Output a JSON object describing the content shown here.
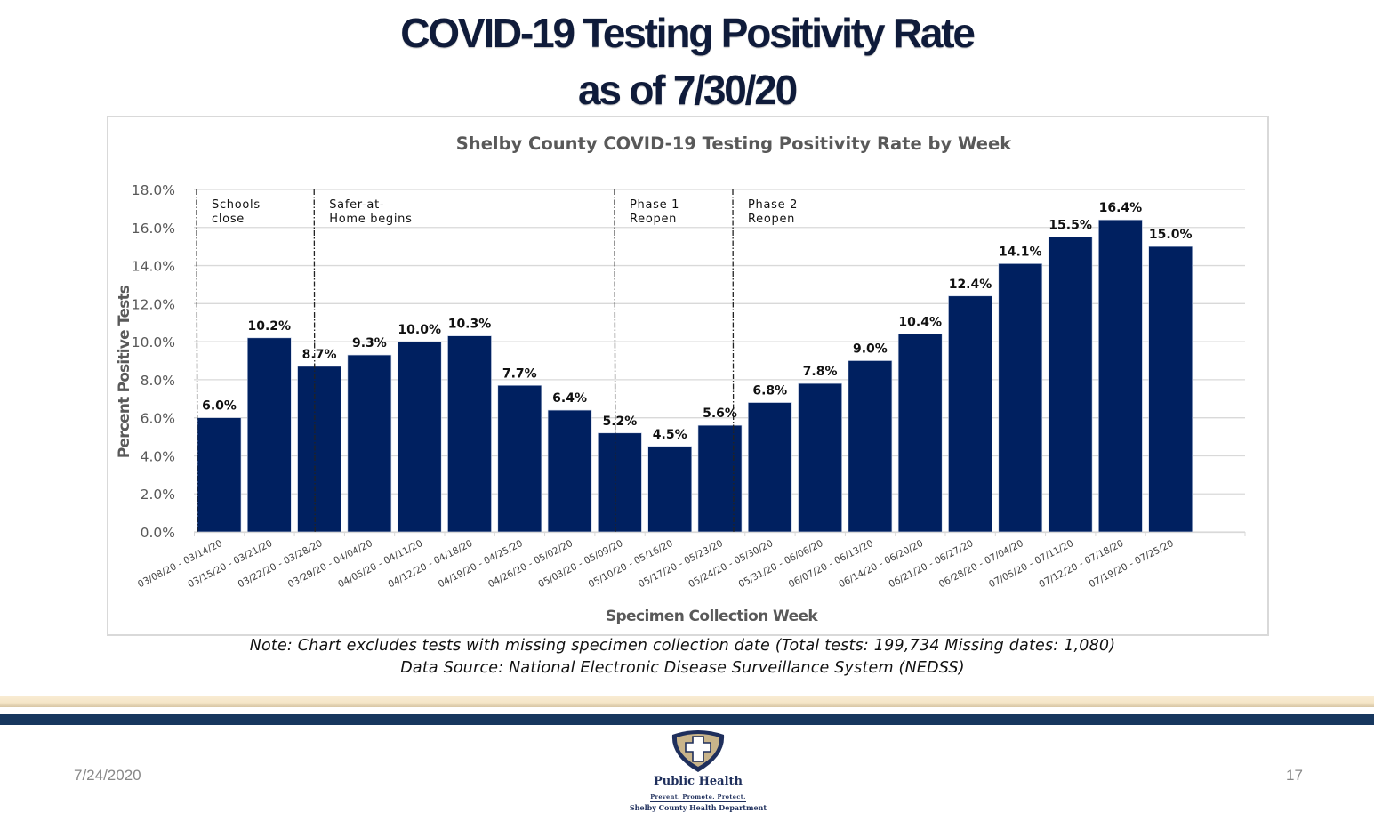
{
  "slide": {
    "title_line1": "COVID-19 Testing Positivity Rate",
    "title_line2": "as of 7/30/20",
    "note_line1": "Note: Chart  excludes tests with missing specimen collection date (Total tests: 199,734  Missing dates: 1,080)",
    "note_line2": "Data Source: National  Electronic Disease Surveillance System (NEDSS)",
    "footer_date": "7/24/2020",
    "page_number": "17",
    "logo": {
      "name": "Public Health",
      "tagline": "Prevent. Promote. Protect.",
      "department": "Shelby County Health Department",
      "colors": {
        "navy": "#1f2f5c",
        "gold": "#c9b48a"
      }
    },
    "colors": {
      "title": "#0f1b3a",
      "band_light": "#f5e6c8",
      "band_dark": "#17375e"
    }
  },
  "chart_data": {
    "type": "bar",
    "title": "Shelby County COVID-19 Testing Positivity Rate by Week",
    "xlabel": "Specimen Collection Week",
    "ylabel": "Percent Positive Tests",
    "ylim": [
      0,
      18
    ],
    "yticks": [
      "0.0%",
      "2.0%",
      "4.0%",
      "6.0%",
      "8.0%",
      "10.0%",
      "12.0%",
      "14.0%",
      "16.0%",
      "18.0%"
    ],
    "grid": true,
    "legend": "none",
    "bar_color": "#002060",
    "categories": [
      "03/08/20 - 03/14/20",
      "03/15/20 - 03/21/20",
      "03/22/20 - 03/28/20",
      "03/29/20 - 04/04/20",
      "04/05/20 - 04/11/20",
      "04/12/20 - 04/18/20",
      "04/19/20 - 04/25/20",
      "04/26/20 - 05/02/20",
      "05/03/20 - 05/09/20",
      "05/10/20 - 05/16/20",
      "05/17/20 - 05/23/20",
      "05/24/20 - 05/30/20",
      "05/31/20 - 06/06/20",
      "06/07/20 - 06/13/20",
      "06/14/20 - 06/20/20",
      "06/21/20 - 06/27/20",
      "06/28/20 - 07/04/20",
      "07/05/20 - 07/11/20",
      "07/12/20 - 07/18/20",
      "07/19/20 - 07/25/20"
    ],
    "values": [
      6.0,
      10.2,
      8.7,
      9.3,
      10.0,
      10.3,
      7.7,
      6.4,
      5.2,
      4.5,
      5.6,
      6.8,
      7.8,
      9.0,
      10.4,
      12.4,
      14.1,
      15.5,
      16.4,
      15.0
    ],
    "data_labels": [
      "6.0%",
      "10.2%",
      "8.7%",
      "9.3%",
      "10.0%",
      "10.3%",
      "7.7%",
      "6.4%",
      "5.2%",
      "4.5%",
      "5.6%",
      "6.8%",
      "7.8%",
      "9.0%",
      "10.4%",
      "12.4%",
      "14.1%",
      "15.5%",
      "16.4%",
      "15.0%"
    ],
    "annotations": [
      {
        "text_lines": [
          "Schools",
          "close"
        ],
        "at_category_index": 0,
        "position": "left-edge"
      },
      {
        "text_lines": [
          "Safer-at-",
          "Home begins"
        ],
        "at_category_index": 2,
        "position": "middle"
      },
      {
        "text_lines": [
          "Phase 1",
          "Reopen"
        ],
        "at_category_index": 8,
        "position": "middle"
      },
      {
        "text_lines": [
          "Phase 2",
          "Reopen"
        ],
        "at_category_index": 10,
        "position": "right-edge"
      }
    ]
  }
}
